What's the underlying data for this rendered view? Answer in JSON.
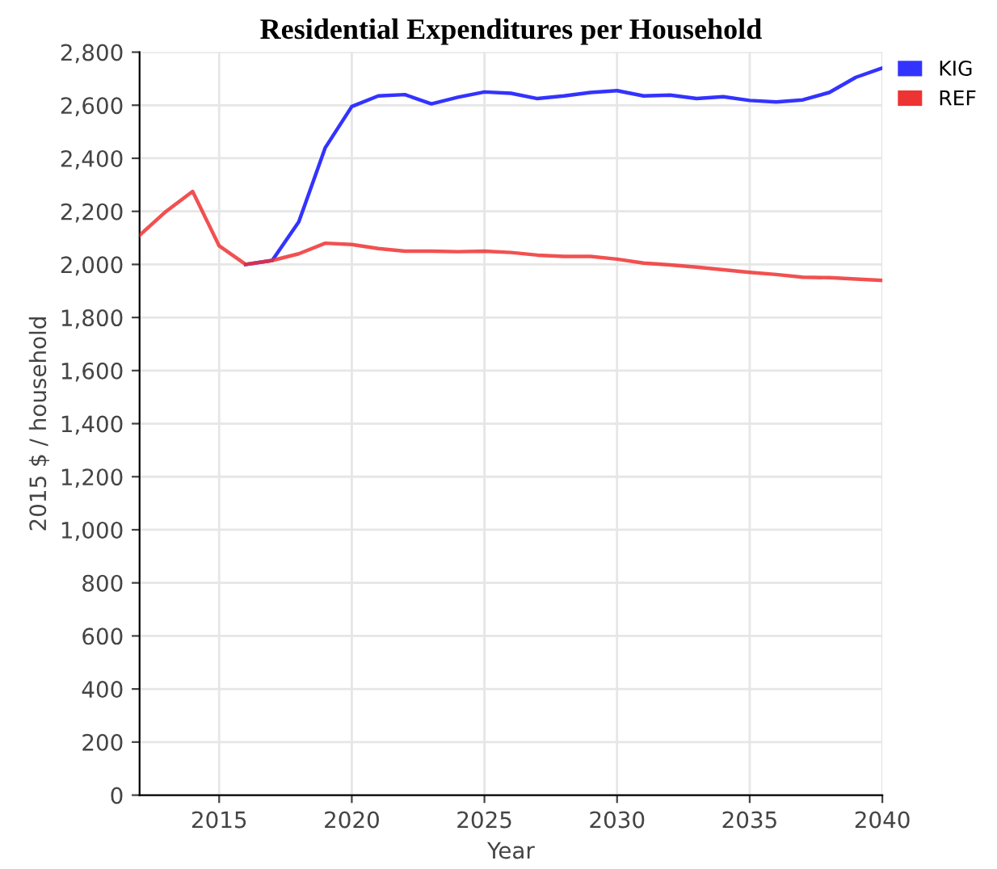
{
  "chart_data": {
    "type": "line",
    "title": "Residential Expenditures per Household",
    "xlabel": "Year",
    "ylabel": "2015 $ / household",
    "x": [
      2012,
      2013,
      2014,
      2015,
      2016,
      2017,
      2018,
      2019,
      2020,
      2021,
      2022,
      2023,
      2024,
      2025,
      2026,
      2027,
      2028,
      2029,
      2030,
      2031,
      2032,
      2033,
      2034,
      2035,
      2036,
      2037,
      2038,
      2039,
      2040
    ],
    "series": [
      {
        "name": "KIG",
        "color": "#3333ff",
        "values": [
          null,
          null,
          null,
          null,
          2000,
          2015,
          2160,
          2440,
          2595,
          2635,
          2640,
          2605,
          2630,
          2650,
          2645,
          2625,
          2635,
          2648,
          2655,
          2635,
          2638,
          2625,
          2632,
          2618,
          2612,
          2620,
          2648,
          2705,
          2740
        ]
      },
      {
        "name": "REF",
        "color": "#ee3333",
        "values": [
          2110,
          2200,
          2275,
          2070,
          2000,
          2015,
          2040,
          2080,
          2075,
          2060,
          2050,
          2050,
          2048,
          2050,
          2045,
          2035,
          2030,
          2030,
          2020,
          2005,
          1998,
          1990,
          1980,
          1970,
          1962,
          1952,
          1950,
          1945,
          1940
        ]
      }
    ],
    "xlim": [
      2012,
      2040
    ],
    "xticks": [
      2015,
      2020,
      2025,
      2030,
      2035,
      2040
    ],
    "ylim": [
      0,
      2800
    ],
    "yticks": [
      {
        "value": 0,
        "label": "0"
      },
      {
        "value": 200,
        "label": "200"
      },
      {
        "value": 400,
        "label": "400"
      },
      {
        "value": 600,
        "label": "600"
      },
      {
        "value": 800,
        "label": "800"
      },
      {
        "value": 1000,
        "label": "1,000"
      },
      {
        "value": 1200,
        "label": "1,200"
      },
      {
        "value": 1400,
        "label": "1,400"
      },
      {
        "value": 1600,
        "label": "1,600"
      },
      {
        "value": 1800,
        "label": "1,800"
      },
      {
        "value": 2000,
        "label": "2,000"
      },
      {
        "value": 2200,
        "label": "2,200"
      },
      {
        "value": 2400,
        "label": "2,400"
      },
      {
        "value": 2600,
        "label": "2,600"
      },
      {
        "value": 2800,
        "label": "2,800"
      }
    ],
    "grid": true,
    "legend": "top right",
    "marker": "none",
    "line_style": "solid"
  }
}
